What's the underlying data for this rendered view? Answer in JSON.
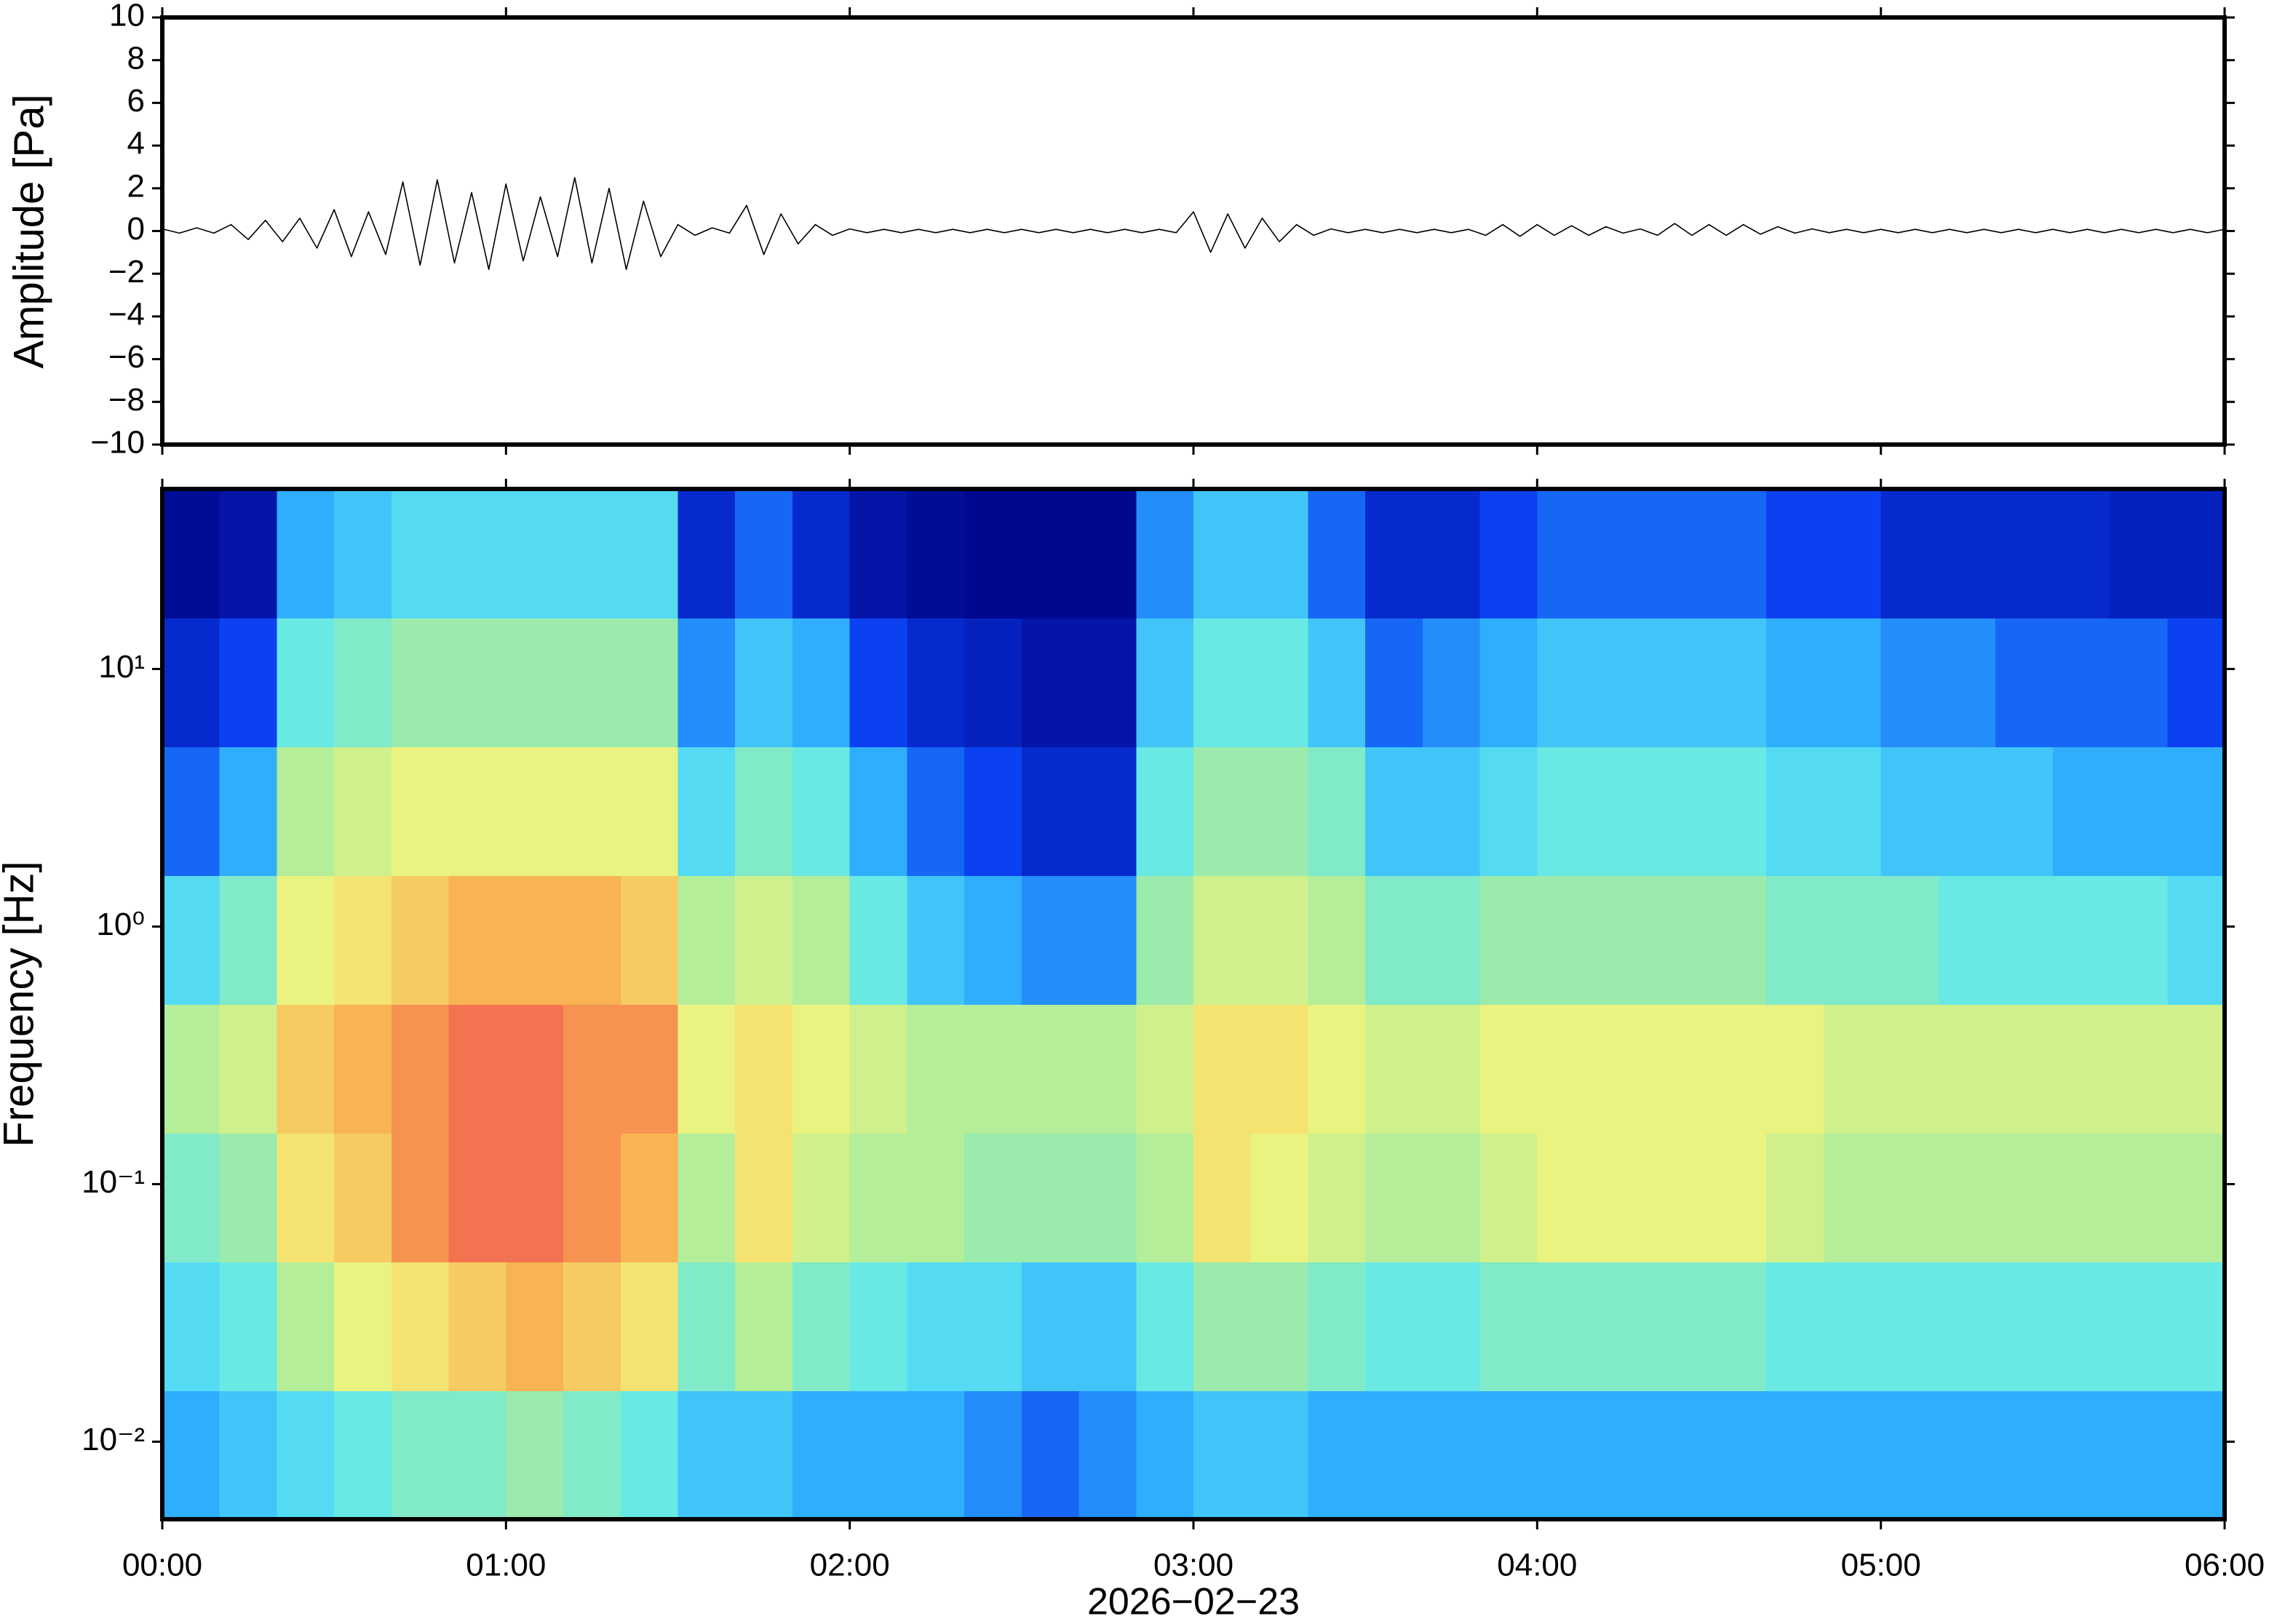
{
  "chart_data": [
    {
      "type": "line",
      "ylabel": "Amplitude [Pa]",
      "color": "#000000",
      "xlim": [
        0,
        360
      ],
      "xticks": [
        0,
        60,
        120,
        180,
        240,
        300,
        360
      ],
      "ylim": [
        -10,
        10
      ],
      "yticks": [
        {
          "value": -10,
          "label": "−10"
        },
        {
          "value": -8,
          "label": "−8"
        },
        {
          "value": -6,
          "label": "−6"
        },
        {
          "value": -4,
          "label": "−4"
        },
        {
          "value": -2,
          "label": "−2"
        },
        0,
        2,
        4,
        6,
        8,
        10
      ],
      "x": [
        0,
        3,
        6,
        9,
        12,
        15,
        18,
        21,
        24,
        27,
        30,
        33,
        36,
        39,
        42,
        45,
        48,
        51,
        54,
        57,
        60,
        63,
        66,
        69,
        72,
        75,
        78,
        81,
        84,
        87,
        90,
        93,
        96,
        99,
        102,
        105,
        108,
        111,
        114,
        117,
        120,
        123,
        126,
        129,
        132,
        135,
        138,
        141,
        144,
        147,
        150,
        153,
        156,
        159,
        162,
        165,
        168,
        171,
        174,
        177,
        180,
        183,
        186,
        189,
        192,
        195,
        198,
        201,
        204,
        207,
        210,
        213,
        216,
        219,
        222,
        225,
        228,
        231,
        234,
        237,
        240,
        243,
        246,
        249,
        252,
        255,
        258,
        261,
        264,
        267,
        270,
        273,
        276,
        279,
        282,
        285,
        288,
        291,
        294,
        297,
        300,
        303,
        306,
        309,
        312,
        315,
        318,
        321,
        324,
        327,
        330,
        333,
        336,
        339,
        342,
        345,
        348,
        351,
        354,
        357,
        360
      ],
      "values": [
        0.1,
        -0.1,
        0.15,
        -0.1,
        0.3,
        -0.4,
        0.5,
        -0.5,
        0.6,
        -0.8,
        1.0,
        -1.2,
        0.9,
        -1.1,
        2.3,
        -1.6,
        2.4,
        -1.5,
        1.8,
        -1.8,
        2.2,
        -1.4,
        1.6,
        -1.2,
        2.5,
        -1.5,
        2.0,
        -1.8,
        1.4,
        -1.2,
        0.3,
        -0.2,
        0.15,
        -0.1,
        1.2,
        -1.1,
        0.8,
        -0.6,
        0.3,
        -0.2,
        0.1,
        -0.08,
        0.08,
        -0.08,
        0.08,
        -0.08,
        0.08,
        -0.08,
        0.08,
        -0.08,
        0.08,
        -0.08,
        0.08,
        -0.08,
        0.08,
        -0.08,
        0.08,
        -0.08,
        0.08,
        -0.08,
        0.9,
        -1.0,
        0.8,
        -0.8,
        0.6,
        -0.5,
        0.3,
        -0.2,
        0.1,
        -0.08,
        0.08,
        -0.08,
        0.08,
        -0.08,
        0.08,
        -0.08,
        0.08,
        -0.2,
        0.3,
        -0.25,
        0.3,
        -0.2,
        0.25,
        -0.2,
        0.2,
        -0.1,
        0.1,
        -0.2,
        0.35,
        -0.2,
        0.3,
        -0.2,
        0.3,
        -0.15,
        0.2,
        -0.1,
        0.1,
        -0.08,
        0.08,
        -0.08,
        0.08,
        -0.08,
        0.08,
        -0.08,
        0.08,
        -0.08,
        0.08,
        -0.08,
        0.08,
        -0.08,
        0.08,
        -0.08,
        0.08,
        -0.08,
        0.08,
        -0.08,
        0.08,
        -0.08,
        0.08,
        -0.08,
        0.08
      ]
    },
    {
      "type": "heatmap",
      "ylabel": "Frequency [Hz]",
      "xlabel": "2026−02−23",
      "xlim": [
        0,
        360
      ],
      "xticks": [
        {
          "value": 0,
          "label": "00:00"
        },
        {
          "value": 60,
          "label": "01:00"
        },
        {
          "value": 120,
          "label": "02:00"
        },
        {
          "value": 180,
          "label": "03:00"
        },
        {
          "value": 240,
          "label": "04:00"
        },
        {
          "value": 300,
          "label": "05:00"
        },
        {
          "value": 360,
          "label": "06:00"
        }
      ],
      "ylim": [
        0.005,
        50
      ],
      "ylog": true,
      "yticks": [
        {
          "value": 0.01,
          "label": "10⁻²"
        },
        {
          "value": 0.1,
          "label": "10⁻¹"
        },
        {
          "value": 1,
          "label": "10⁰"
        },
        {
          "value": 10,
          "label": "10¹"
        }
      ],
      "zlim": [
        0,
        10
      ],
      "colors": [
        "#00007f",
        "#0a3cf0",
        "#2aa8ff",
        "#5ee8f0",
        "#a4eca0",
        "#f2f47c",
        "#f8b050",
        "#f05050"
      ],
      "x": [
        0,
        10,
        20,
        30,
        40,
        50,
        60,
        70,
        80,
        90,
        100,
        110,
        120,
        130,
        140,
        150,
        160,
        170,
        180,
        190,
        200,
        210,
        220,
        230,
        240,
        250,
        260,
        270,
        280,
        290,
        300,
        310,
        320,
        330,
        340,
        350,
        360
      ],
      "y": [
        0.005,
        0.0158,
        0.05,
        0.158,
        0.5,
        1.58,
        5,
        15.8,
        50
      ],
      "values": [
        [
          3,
          4,
          5,
          6,
          4,
          2,
          1,
          0.3
        ],
        [
          3.5,
          4.5,
          5.5,
          6.5,
          5,
          3,
          1.5,
          0.5
        ],
        [
          4,
          6,
          7.5,
          8,
          7,
          6,
          4.5,
          3
        ],
        [
          4.5,
          7,
          8,
          8.5,
          7.5,
          6.5,
          5,
          3.5
        ],
        [
          5,
          7.5,
          9,
          9,
          8,
          7,
          5.5,
          4
        ],
        [
          5,
          8,
          9.5,
          9.5,
          8.5,
          7,
          5.5,
          4
        ],
        [
          5.5,
          8.5,
          9.5,
          9.5,
          8.5,
          7,
          5.5,
          4
        ],
        [
          5,
          8,
          9,
          9,
          8.5,
          7,
          5.5,
          4
        ],
        [
          4.5,
          7.5,
          8.5,
          9,
          8,
          7,
          5.5,
          4
        ],
        [
          3.5,
          5,
          6,
          7,
          6,
          4,
          2.5,
          1
        ],
        [
          3.5,
          6,
          7.5,
          7.5,
          6.5,
          5,
          3.5,
          2
        ],
        [
          3,
          5,
          6.5,
          7,
          6,
          4.5,
          3,
          1
        ],
        [
          3,
          4.5,
          6,
          6.5,
          4.5,
          3,
          1.5,
          0.5
        ],
        [
          3,
          4,
          6,
          6,
          3.5,
          2,
          1,
          0.3
        ],
        [
          2.5,
          4,
          5.5,
          6,
          3,
          1.5,
          0.8,
          0.2
        ],
        [
          2,
          3.5,
          5.5,
          6,
          2.5,
          1,
          0.5,
          0.2
        ],
        [
          2.5,
          3.5,
          5.5,
          6,
          2.5,
          1,
          0.5,
          0.2
        ],
        [
          3,
          4.5,
          6,
          6.5,
          5.5,
          4.5,
          3.5,
          2.5
        ],
        [
          3.5,
          5.5,
          7.5,
          7.5,
          6.5,
          5.5,
          4.5,
          3.5
        ],
        [
          3.5,
          5.5,
          7,
          7.5,
          6.5,
          5.5,
          4.5,
          3.5
        ],
        [
          3,
          5,
          6.5,
          7,
          6,
          5,
          3.5,
          2
        ],
        [
          3,
          4.5,
          6,
          6.5,
          5,
          3.5,
          2,
          1
        ],
        [
          3,
          4.5,
          6,
          6.5,
          5,
          3.5,
          2.5,
          1
        ],
        [
          3,
          5,
          6.5,
          7,
          5.5,
          4,
          3,
          1.5
        ],
        [
          3,
          5,
          7,
          7,
          5.5,
          4.5,
          3.5,
          2
        ],
        [
          3,
          5,
          7,
          7,
          5.5,
          4.5,
          3.5,
          2
        ],
        [
          3,
          5,
          7,
          7,
          5.5,
          4.5,
          3.5,
          2
        ],
        [
          3,
          5,
          7,
          7,
          5.5,
          4.5,
          3.5,
          2
        ],
        [
          3,
          4.5,
          6.5,
          7,
          5,
          4,
          3,
          1.5
        ],
        [
          3,
          4.5,
          6,
          6.5,
          5,
          4,
          3,
          1.5
        ],
        [
          3,
          4.5,
          6,
          6.5,
          5,
          3.5,
          2.5,
          1
        ],
        [
          3,
          4.5,
          6,
          6.5,
          4.5,
          3.5,
          2.5,
          1
        ],
        [
          3,
          4.5,
          6,
          6.5,
          4.5,
          3.5,
          2,
          1
        ],
        [
          3,
          4.5,
          6,
          6.5,
          4.5,
          3,
          2,
          1
        ],
        [
          3,
          4.5,
          6,
          6.5,
          4.5,
          3,
          2,
          0.8
        ],
        [
          3,
          4.5,
          6,
          6.5,
          4,
          3,
          1.5,
          0.8
        ]
      ]
    }
  ]
}
